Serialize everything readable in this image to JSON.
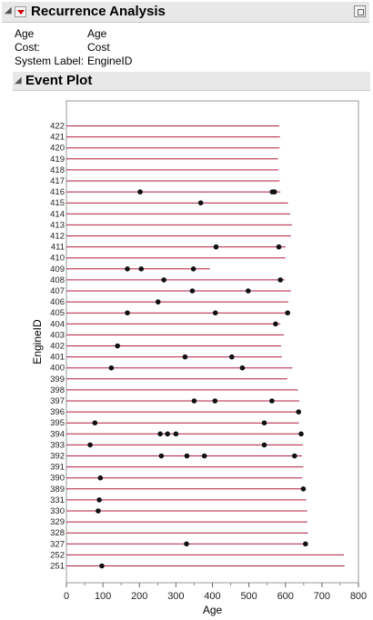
{
  "header": {
    "title": "Recurrence Analysis"
  },
  "info": [
    {
      "label": "Age",
      "value": "Age"
    },
    {
      "label": "Cost:",
      "value": "Cost"
    },
    {
      "label": "System Label:",
      "value": "EngineID"
    }
  ],
  "subheader": {
    "title": "Event Plot"
  },
  "chart_data": {
    "type": "scatter",
    "xlabel": "Age",
    "ylabel": "EngineID",
    "xlim": [
      0,
      800
    ],
    "xticks": [
      0,
      100,
      200,
      300,
      400,
      500,
      600,
      700,
      800
    ],
    "grid": false,
    "colors": {
      "line": "#b01e3c",
      "point": "#111111"
    },
    "categories": [
      "422",
      "421",
      "420",
      "419",
      "418",
      "417",
      "416",
      "415",
      "414",
      "413",
      "412",
      "411",
      "410",
      "409",
      "408",
      "407",
      "406",
      "405",
      "404",
      "403",
      "402",
      "401",
      "400",
      "399",
      "398",
      "397",
      "396",
      "395",
      "394",
      "393",
      "392",
      "391",
      "390",
      "389",
      "331",
      "330",
      "329",
      "328",
      "327",
      "252",
      "251"
    ],
    "series": [
      {
        "id": "422",
        "end": 583,
        "events": []
      },
      {
        "id": "421",
        "end": 585,
        "events": []
      },
      {
        "id": "420",
        "end": 584,
        "events": []
      },
      {
        "id": "419",
        "end": 580,
        "events": []
      },
      {
        "id": "418",
        "end": 581,
        "events": []
      },
      {
        "id": "417",
        "end": 584,
        "events": []
      },
      {
        "id": "416",
        "end": 586,
        "events": [
          202,
          564,
          570
        ]
      },
      {
        "id": "415",
        "end": 607,
        "events": [
          368
        ]
      },
      {
        "id": "414",
        "end": 613,
        "events": []
      },
      {
        "id": "413",
        "end": 618,
        "events": []
      },
      {
        "id": "412",
        "end": 615,
        "events": []
      },
      {
        "id": "411",
        "end": 601,
        "events": [
          410,
          582
        ]
      },
      {
        "id": "410",
        "end": 600,
        "events": []
      },
      {
        "id": "409",
        "end": 393,
        "events": [
          167,
          205,
          348
        ]
      },
      {
        "id": "408",
        "end": 598,
        "events": [
          267,
          586
        ]
      },
      {
        "id": "407",
        "end": 615,
        "events": [
          345,
          498
        ]
      },
      {
        "id": "406",
        "end": 608,
        "events": [
          251
        ]
      },
      {
        "id": "405",
        "end": 609,
        "events": [
          167,
          408,
          606
        ]
      },
      {
        "id": "404",
        "end": 586,
        "events": [
          573
        ]
      },
      {
        "id": "403",
        "end": 596,
        "events": []
      },
      {
        "id": "402",
        "end": 588,
        "events": [
          140
        ]
      },
      {
        "id": "401",
        "end": 590,
        "events": [
          325,
          453
        ]
      },
      {
        "id": "400",
        "end": 619,
        "events": [
          123,
          482
        ]
      },
      {
        "id": "399",
        "end": 605,
        "events": []
      },
      {
        "id": "398",
        "end": 634,
        "events": []
      },
      {
        "id": "397",
        "end": 638,
        "events": [
          350,
          407,
          563
        ]
      },
      {
        "id": "396",
        "end": 638,
        "events": [
          636
        ]
      },
      {
        "id": "395",
        "end": 637,
        "events": [
          78,
          542
        ]
      },
      {
        "id": "394",
        "end": 646,
        "events": [
          257,
          277,
          300,
          643
        ]
      },
      {
        "id": "393",
        "end": 648,
        "events": [
          65,
          542
        ]
      },
      {
        "id": "392",
        "end": 645,
        "events": [
          260,
          330,
          378,
          625
        ]
      },
      {
        "id": "391",
        "end": 649,
        "events": []
      },
      {
        "id": "390",
        "end": 646,
        "events": [
          93
        ]
      },
      {
        "id": "389",
        "end": 650,
        "events": [
          649
        ]
      },
      {
        "id": "331",
        "end": 657,
        "events": [
          90
        ]
      },
      {
        "id": "330",
        "end": 660,
        "events": [
          87
        ]
      },
      {
        "id": "329",
        "end": 660,
        "events": []
      },
      {
        "id": "328",
        "end": 662,
        "events": []
      },
      {
        "id": "327",
        "end": 662,
        "events": [
          329,
          655
        ]
      },
      {
        "id": "252",
        "end": 760,
        "events": []
      },
      {
        "id": "251",
        "end": 762,
        "events": [
          97
        ]
      }
    ]
  }
}
